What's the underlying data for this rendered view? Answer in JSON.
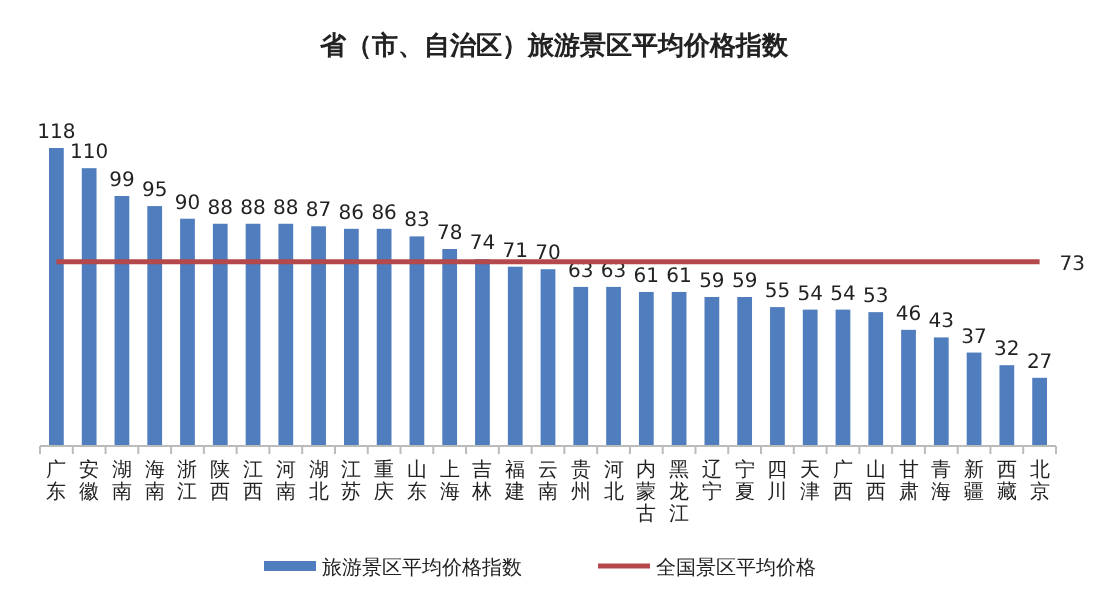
{
  "chart_data": {
    "type": "bar",
    "title": "省（市、自治区）旅游景区平均价格指数",
    "categories": [
      "广东",
      "安徽",
      "湖南",
      "海南",
      "浙江",
      "陕西",
      "江西",
      "河南",
      "湖北",
      "江苏",
      "重庆",
      "山东",
      "上海",
      "吉林",
      "福建",
      "云南",
      "贵州",
      "河北",
      "内蒙古",
      "黑龙江",
      "辽宁",
      "宁夏",
      "四川",
      "天津",
      "广西",
      "山西",
      "甘肃",
      "青海",
      "新疆",
      "西藏",
      "北京"
    ],
    "series": [
      {
        "name": "旅游景区平均价格指数",
        "color": "#4f7dbd",
        "values": [
          118,
          110,
          99,
          95,
          90,
          88,
          88,
          88,
          87,
          86,
          86,
          83,
          78,
          74,
          71,
          70,
          63,
          63,
          61,
          61,
          59,
          59,
          55,
          54,
          54,
          53,
          46,
          43,
          37,
          32,
          27
        ]
      },
      {
        "name": "全国景区平均价格",
        "type": "line",
        "color": "#b5484a",
        "values": [
          73,
          73,
          73,
          73,
          73,
          73,
          73,
          73,
          73,
          73,
          73,
          73,
          73,
          73,
          73,
          73,
          73,
          73,
          73,
          73,
          73,
          73,
          73,
          73,
          73,
          73,
          73,
          73,
          73,
          73,
          73
        ],
        "value_labels": [
          null,
          null,
          null,
          null,
          null,
          null,
          null,
          null,
          null,
          null,
          null,
          null,
          null,
          null,
          null,
          null,
          null,
          null,
          null,
          null,
          null,
          null,
          null,
          null,
          null,
          null,
          null,
          null,
          null,
          null,
          "73"
        ]
      }
    ],
    "data_labels": true,
    "legend": "bottom"
  }
}
